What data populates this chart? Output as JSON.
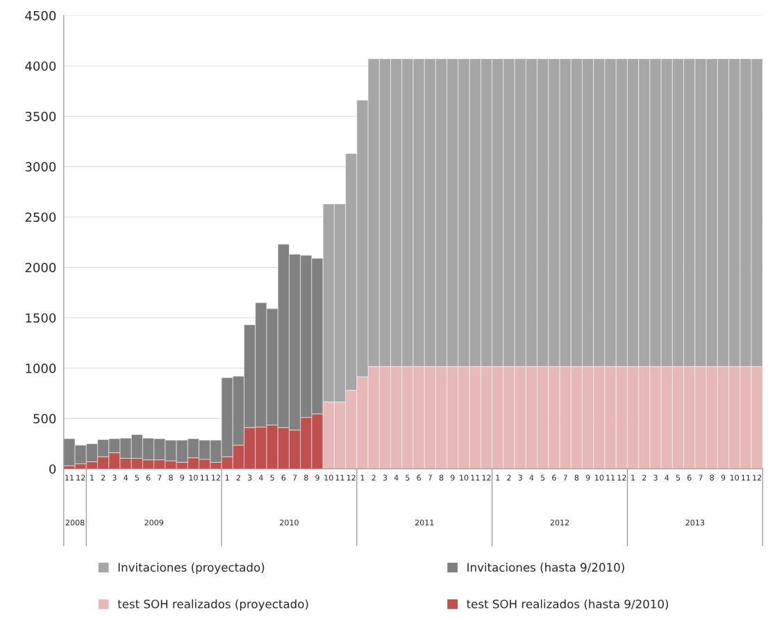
{
  "chart_data": {
    "type": "bar",
    "stacked": true,
    "categories": [
      "11",
      "12",
      "1",
      "2",
      "3",
      "4",
      "5",
      "6",
      "7",
      "8",
      "9",
      "10",
      "11",
      "12",
      "1",
      "2",
      "3",
      "4",
      "5",
      "6",
      "7",
      "8",
      "9",
      "10",
      "11",
      "12",
      "1",
      "2",
      "3",
      "4",
      "5",
      "6",
      "7",
      "8",
      "9",
      "10",
      "11",
      "12",
      "1",
      "2",
      "3",
      "4",
      "5",
      "6",
      "7",
      "8",
      "9",
      "10",
      "11",
      "12",
      "1",
      "2",
      "3",
      "4",
      "5",
      "6",
      "7",
      "8",
      "9",
      "10",
      "11",
      "12"
    ],
    "series": [
      {
        "name": "test SOH realizados (hasta 9/2010)",
        "color": "#c0504d",
        "values": [
          30,
          50,
          70,
          120,
          160,
          105,
          105,
          90,
          90,
          80,
          65,
          110,
          95,
          65,
          120,
          235,
          410,
          415,
          435,
          410,
          385,
          510,
          545,
          null,
          null,
          null,
          null,
          null,
          null,
          null,
          null,
          null,
          null,
          null,
          null,
          null,
          null,
          null,
          null,
          null,
          null,
          null,
          null,
          null,
          null,
          null,
          null,
          null,
          null,
          null,
          null,
          null,
          null,
          null,
          null,
          null,
          null,
          null,
          null,
          null,
          null,
          null
        ]
      },
      {
        "name": "Invitaciones (hasta 9/2010)",
        "color": "#808080",
        "values": [
          270,
          185,
          180,
          170,
          140,
          200,
          235,
          215,
          210,
          205,
          220,
          190,
          190,
          220,
          785,
          685,
          1020,
          1235,
          1155,
          1820,
          1745,
          1610,
          1545,
          null,
          null,
          null,
          null,
          null,
          null,
          null,
          null,
          null,
          null,
          null,
          null,
          null,
          null,
          null,
          null,
          null,
          null,
          null,
          null,
          null,
          null,
          null,
          null,
          null,
          null,
          null,
          null,
          null,
          null,
          null,
          null,
          null,
          null,
          null,
          null,
          null,
          null,
          null
        ]
      },
      {
        "name": "test SOH realizados (proyectado)",
        "color": "#e6b9b8",
        "values": [
          null,
          null,
          null,
          null,
          null,
          null,
          null,
          null,
          null,
          null,
          null,
          null,
          null,
          null,
          null,
          null,
          null,
          null,
          null,
          null,
          null,
          null,
          null,
          665,
          665,
          780,
          915,
          1015,
          1015,
          1015,
          1015,
          1015,
          1015,
          1015,
          1015,
          1015,
          1015,
          1015,
          1015,
          1015,
          1015,
          1015,
          1015,
          1015,
          1015,
          1015,
          1015,
          1015,
          1015,
          1015,
          1015,
          1015,
          1015,
          1015,
          1015,
          1015,
          1015,
          1015,
          1015,
          1015,
          1015,
          1015
        ]
      },
      {
        "name": "Invitaciones (proyectado)",
        "color": "#a6a6a6",
        "values": [
          null,
          null,
          null,
          null,
          null,
          null,
          null,
          null,
          null,
          null,
          null,
          null,
          null,
          null,
          null,
          null,
          null,
          null,
          null,
          null,
          null,
          null,
          null,
          1965,
          1965,
          2350,
          2745,
          3055,
          3055,
          3055,
          3055,
          3055,
          3055,
          3055,
          3055,
          3055,
          3055,
          3055,
          3055,
          3055,
          3055,
          3055,
          3055,
          3055,
          3055,
          3055,
          3055,
          3055,
          3055,
          3055,
          3055,
          3055,
          3055,
          3055,
          3055,
          3055,
          3055,
          3055,
          3055,
          3055,
          3055,
          3055
        ]
      }
    ],
    "annotations": [
      "2008",
      "2009",
      "2010",
      "2011",
      "2012",
      "2013"
    ],
    "ylim": [
      0,
      4500
    ],
    "yticks": [
      0,
      500,
      1000,
      1500,
      2000,
      2500,
      3000,
      3500,
      4000,
      4500
    ],
    "grid": "y",
    "legend": "bottom"
  }
}
